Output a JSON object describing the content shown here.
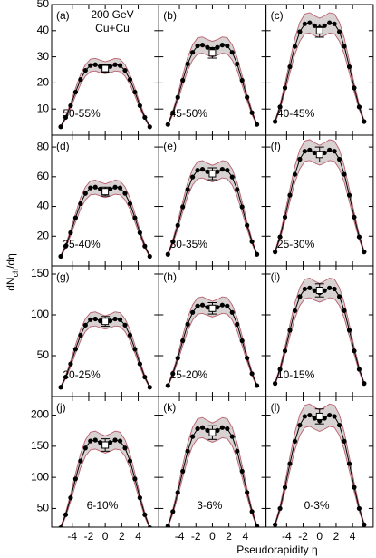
{
  "xlabel": "Pseudorapidity η",
  "ylabel": {
    "main": "dN",
    "sub": "ch",
    "rest": "/dη"
  },
  "annotation": {
    "energy": "200 GeV",
    "system": "Cu+Cu"
  },
  "chart_data": [
    {
      "type": "line",
      "panel": "(a)",
      "label": "50-55%",
      "xlim": [
        -6.5,
        6.5
      ],
      "xticks": [
        -4,
        -2,
        0,
        2,
        4
      ],
      "ylim": [
        0,
        50
      ],
      "yticks": [
        10,
        20,
        30,
        40,
        50
      ],
      "x": [
        -5.4,
        -4.8,
        -4.2,
        -3.6,
        -3.0,
        -2.4,
        -1.8,
        -1.2,
        -0.6,
        0,
        0.6,
        1.2,
        1.8,
        2.4,
        3.0,
        3.6,
        4.2,
        4.8,
        5.4
      ],
      "values": [
        3.2,
        6.8,
        11.3,
        16.5,
        21.3,
        24.8,
        26.7,
        27,
        26.3,
        25.8,
        26.3,
        27,
        26.7,
        24.8,
        21.3,
        16.5,
        11.3,
        6.8,
        3.2
      ],
      "upper": [
        3.5,
        7.4,
        12.3,
        18.0,
        23.2,
        27.0,
        29.1,
        29.4,
        28.7,
        28.1,
        28.7,
        29.4,
        29.1,
        27.0,
        23.2,
        18.0,
        12.3,
        7.4,
        3.5
      ],
      "lower": [
        2.9,
        6.2,
        10.3,
        15.0,
        19.4,
        22.6,
        24.3,
        24.6,
        23.9,
        23.5,
        23.9,
        24.6,
        24.3,
        22.6,
        19.4,
        15.0,
        10.3,
        6.2,
        2.9
      ],
      "center": {
        "value": 25.5,
        "error": 1.5
      }
    },
    {
      "type": "line",
      "panel": "(b)",
      "label": "45-50%",
      "xlim": [
        -6.5,
        6.5
      ],
      "xticks": [
        -4,
        -2,
        0,
        2,
        4
      ],
      "ylim": [
        0,
        50
      ],
      "yticks": [
        10,
        20,
        30,
        40,
        50
      ],
      "x": [
        -5.4,
        -4.8,
        -4.2,
        -3.6,
        -3.0,
        -2.4,
        -1.8,
        -1.2,
        -0.6,
        0,
        0.6,
        1.2,
        1.8,
        2.4,
        3.0,
        3.6,
        4.2,
        4.8,
        5.4
      ],
      "values": [
        4.1,
        8.6,
        14.5,
        21.0,
        27.3,
        31.7,
        34.2,
        34.5,
        33.6,
        32.9,
        33.6,
        34.5,
        34.2,
        31.7,
        27.3,
        21.0,
        14.5,
        8.6,
        4.1
      ],
      "upper": [
        4.5,
        9.4,
        15.8,
        22.9,
        29.8,
        34.6,
        37.3,
        37.6,
        36.6,
        35.9,
        36.6,
        37.6,
        37.3,
        34.6,
        29.8,
        22.9,
        15.8,
        9.4,
        4.5
      ],
      "lower": [
        3.7,
        7.8,
        13.2,
        19.1,
        24.8,
        28.8,
        31.1,
        31.4,
        30.6,
        29.9,
        30.6,
        31.4,
        31.1,
        28.8,
        24.8,
        19.1,
        13.2,
        7.8,
        3.7
      ],
      "center": {
        "value": 31.5,
        "error": 2
      }
    },
    {
      "type": "line",
      "panel": "(c)",
      "label": "40-45%",
      "xlim": [
        -6.5,
        6.5
      ],
      "xticks": [
        -4,
        -2,
        0,
        2,
        4
      ],
      "ylim": [
        0,
        50
      ],
      "yticks": [
        10,
        20,
        30,
        40,
        50
      ],
      "x": [
        -5.4,
        -4.8,
        -4.2,
        -3.6,
        -3.0,
        -2.4,
        -1.8,
        -1.2,
        -0.6,
        0,
        0.6,
        1.2,
        1.8,
        2.4,
        3.0,
        3.6,
        4.2,
        4.8,
        5.4
      ],
      "values": [
        5.2,
        10.8,
        18.1,
        26.2,
        34.0,
        39.6,
        42.6,
        43,
        41.9,
        41.1,
        41.9,
        43,
        42.6,
        39.6,
        34.0,
        26.2,
        18.1,
        10.8,
        5.2
      ],
      "upper": [
        5.7,
        11.8,
        19.7,
        28.6,
        37.1,
        43.2,
        46.4,
        46.9,
        45.7,
        44.8,
        45.7,
        46.9,
        46.4,
        43.2,
        37.1,
        28.6,
        19.7,
        11.8,
        5.7
      ],
      "lower": [
        4.7,
        9.8,
        16.5,
        23.8,
        30.9,
        36.0,
        38.8,
        39.1,
        38.1,
        37.4,
        38.1,
        39.1,
        38.8,
        36.0,
        30.9,
        23.8,
        16.5,
        9.8,
        4.7
      ],
      "center": {
        "value": 40,
        "error": 2.5
      }
    },
    {
      "type": "line",
      "panel": "(d)",
      "label": "35-40%",
      "xlim": [
        -6.5,
        6.5
      ],
      "xticks": [
        -4,
        -2,
        0,
        2,
        4
      ],
      "ylim": [
        0,
        88
      ],
      "yticks": [
        20,
        40,
        60,
        80
      ],
      "x": [
        -5.4,
        -4.8,
        -4.2,
        -3.6,
        -3.0,
        -2.4,
        -1.8,
        -1.2,
        -0.6,
        0,
        0.6,
        1.2,
        1.8,
        2.4,
        3.0,
        3.6,
        4.2,
        4.8,
        5.4
      ],
      "values": [
        6.4,
        13.3,
        22.3,
        32.3,
        41.9,
        48.8,
        52.5,
        53,
        51.7,
        50.6,
        51.7,
        53,
        52.5,
        48.8,
        41.9,
        32.3,
        22.3,
        13.3,
        6.4
      ],
      "upper": [
        7.0,
        14.5,
        24.3,
        35.2,
        45.7,
        53.2,
        57.2,
        57.8,
        56.4,
        55.2,
        56.4,
        57.8,
        57.2,
        53.2,
        45.7,
        35.2,
        24.3,
        14.5,
        7.0
      ],
      "lower": [
        5.8,
        12.1,
        20.3,
        29.4,
        38.1,
        44.4,
        47.8,
        48.2,
        47.0,
        46.0,
        47.0,
        48.2,
        47.8,
        44.4,
        38.1,
        29.4,
        20.3,
        12.1,
        5.8
      ],
      "center": {
        "value": 50,
        "error": 3
      }
    },
    {
      "type": "line",
      "panel": "(e)",
      "label": "30-35%",
      "xlim": [
        -6.5,
        6.5
      ],
      "xticks": [
        -4,
        -2,
        0,
        2,
        4
      ],
      "ylim": [
        0,
        88
      ],
      "yticks": [
        20,
        40,
        60,
        80
      ],
      "x": [
        -5.4,
        -4.8,
        -4.2,
        -3.6,
        -3.0,
        -2.4,
        -1.8,
        -1.2,
        -0.6,
        0,
        0.6,
        1.2,
        1.8,
        2.4,
        3.0,
        3.6,
        4.2,
        4.8,
        5.4
      ],
      "values": [
        7.8,
        16.3,
        27.3,
        39.7,
        51.4,
        59.8,
        64.4,
        65,
        63.4,
        62.1,
        63.4,
        65,
        64.4,
        59.8,
        51.4,
        39.7,
        27.3,
        16.3,
        7.8
      ],
      "upper": [
        8.5,
        17.8,
        29.8,
        43.3,
        56.0,
        65.2,
        70.2,
        70.9,
        69.1,
        67.7,
        69.1,
        70.9,
        70.2,
        65.2,
        56.0,
        43.3,
        29.8,
        17.8,
        8.5
      ],
      "lower": [
        7.1,
        14.8,
        24.8,
        36.1,
        46.8,
        54.4,
        58.6,
        59.2,
        57.7,
        56.5,
        57.7,
        59.2,
        58.6,
        54.4,
        46.8,
        36.1,
        24.8,
        14.8,
        7.1
      ],
      "center": {
        "value": 62,
        "error": 4
      }
    },
    {
      "type": "line",
      "panel": "(f)",
      "label": "25-30%",
      "xlim": [
        -6.5,
        6.5
      ],
      "xticks": [
        -4,
        -2,
        0,
        2,
        4
      ],
      "ylim": [
        0,
        88
      ],
      "yticks": [
        20,
        40,
        60,
        80
      ],
      "x": [
        -5.4,
        -4.8,
        -4.2,
        -3.6,
        -3.0,
        -2.4,
        -1.8,
        -1.2,
        -0.6,
        0,
        0.6,
        1.2,
        1.8,
        2.4,
        3.0,
        3.6,
        4.2,
        4.8,
        5.4
      ],
      "values": [
        9.4,
        19.5,
        32.8,
        47.6,
        61.6,
        71.8,
        77.2,
        78,
        76.1,
        74.5,
        76.1,
        78,
        77.2,
        71.8,
        61.6,
        47.6,
        32.8,
        19.5,
        9.4
      ],
      "upper": [
        10.2,
        21.3,
        35.8,
        51.9,
        67.1,
        78.3,
        84.1,
        85.0,
        82.9,
        81.2,
        82.9,
        85.0,
        84.1,
        78.3,
        67.1,
        51.9,
        35.8,
        21.3,
        10.2
      ],
      "lower": [
        8.6,
        17.7,
        29.8,
        43.3,
        56.1,
        65.3,
        70.3,
        71.0,
        69.3,
        67.8,
        69.3,
        71.0,
        70.3,
        65.3,
        56.1,
        43.3,
        29.8,
        17.7,
        8.6
      ],
      "center": {
        "value": 75,
        "error": 5
      }
    },
    {
      "type": "line",
      "panel": "(g)",
      "label": "20-25%",
      "xlim": [
        -6.5,
        6.5
      ],
      "xticks": [
        -4,
        -2,
        0,
        2,
        4
      ],
      "ylim": [
        0,
        160
      ],
      "yticks": [
        50,
        100,
        150
      ],
      "x": [
        -5.4,
        -4.8,
        -4.2,
        -3.6,
        -3.0,
        -2.4,
        -1.8,
        -1.2,
        -0.6,
        0,
        0.6,
        1.2,
        1.8,
        2.4,
        3.0,
        3.6,
        4.2,
        4.8,
        5.4
      ],
      "values": [
        11.4,
        23.8,
        39.9,
        58.0,
        75.1,
        87.4,
        94.1,
        95,
        92.6,
        90.7,
        92.6,
        95,
        94.1,
        87.4,
        75.1,
        58.0,
        39.9,
        23.8,
        11.4
      ],
      "upper": [
        12.4,
        25.9,
        43.5,
        63.2,
        81.9,
        95.3,
        102.6,
        103.6,
        100.9,
        98.9,
        100.9,
        103.6,
        102.6,
        95.3,
        81.9,
        63.2,
        43.5,
        25.9,
        12.4
      ],
      "lower": [
        10.4,
        21.7,
        36.3,
        52.8,
        68.3,
        79.5,
        85.6,
        86.5,
        84.3,
        82.5,
        84.3,
        86.5,
        85.6,
        79.5,
        68.3,
        52.8,
        36.3,
        21.7,
        10.4
      ],
      "center": {
        "value": 92,
        "error": 6
      }
    },
    {
      "type": "line",
      "panel": "(h)",
      "label": "15-20%",
      "xlim": [
        -6.5,
        6.5
      ],
      "xticks": [
        -4,
        -2,
        0,
        2,
        4
      ],
      "ylim": [
        0,
        160
      ],
      "yticks": [
        50,
        100,
        150
      ],
      "x": [
        -5.4,
        -4.8,
        -4.2,
        -3.6,
        -3.0,
        -2.4,
        -1.8,
        -1.2,
        -0.6,
        0,
        0.6,
        1.2,
        1.8,
        2.4,
        3.0,
        3.6,
        4.2,
        4.8,
        5.4
      ],
      "values": [
        13.4,
        28.0,
        47.0,
        68.3,
        88.5,
        103.0,
        110.9,
        112,
        109.2,
        107.0,
        109.2,
        112,
        110.9,
        103.0,
        88.5,
        68.3,
        47.0,
        28.0,
        13.4
      ],
      "upper": [
        14.6,
        30.5,
        51.2,
        74.4,
        96.5,
        112.3,
        120.9,
        122.1,
        119.0,
        116.6,
        119.0,
        122.1,
        120.9,
        112.3,
        96.5,
        74.4,
        51.2,
        30.5,
        14.6
      ],
      "lower": [
        12.2,
        25.5,
        42.8,
        62.2,
        80.5,
        93.7,
        100.9,
        101.9,
        99.4,
        97.4,
        99.4,
        101.9,
        100.9,
        93.7,
        80.5,
        62.2,
        42.8,
        25.5,
        12.2
      ],
      "center": {
        "value": 108,
        "error": 7
      }
    },
    {
      "type": "line",
      "panel": "(i)",
      "label": "10-15%",
      "xlim": [
        -6.5,
        6.5
      ],
      "xticks": [
        -4,
        -2,
        0,
        2,
        4
      ],
      "ylim": [
        0,
        160
      ],
      "yticks": [
        50,
        100,
        150
      ],
      "x": [
        -5.4,
        -4.8,
        -4.2,
        -3.6,
        -3.0,
        -2.4,
        -1.8,
        -1.2,
        -0.6,
        0,
        0.6,
        1.2,
        1.8,
        2.4,
        3.0,
        3.6,
        4.2,
        4.8,
        5.4
      ],
      "values": [
        16.0,
        33.3,
        55.9,
        81.1,
        105.1,
        122.4,
        131.7,
        133,
        129.7,
        127.0,
        129.7,
        133,
        131.7,
        122.4,
        105.1,
        81.1,
        55.9,
        33.3,
        16.0
      ],
      "upper": [
        17.4,
        36.3,
        60.9,
        88.4,
        114.6,
        133.4,
        143.6,
        145.0,
        141.4,
        138.4,
        141.4,
        145.0,
        143.6,
        133.4,
        114.6,
        88.4,
        60.9,
        36.3,
        17.4
      ],
      "lower": [
        14.6,
        30.3,
        50.9,
        73.8,
        95.6,
        111.4,
        119.8,
        121.0,
        118.0,
        115.6,
        118.0,
        121.0,
        119.8,
        111.4,
        95.6,
        73.8,
        50.9,
        30.3,
        14.6
      ],
      "center": {
        "value": 130,
        "error": 8
      }
    },
    {
      "type": "line",
      "panel": "(j)",
      "label": "6-10%",
      "xlim": [
        -6.5,
        6.5
      ],
      "xticks": [
        -4,
        -2,
        0,
        2,
        4
      ],
      "ylim": [
        20,
        230
      ],
      "yticks": [
        50,
        100,
        150,
        200
      ],
      "x": [
        -5.4,
        -4.8,
        -4.2,
        -3.6,
        -3.0,
        -2.4,
        -1.8,
        -1.2,
        -0.6,
        0,
        0.6,
        1.2,
        1.8,
        2.4,
        3.0,
        3.6,
        4.2,
        4.8,
        5.4
      ],
      "values": [
        19.2,
        40.0,
        67.2,
        97.6,
        126.4,
        147.2,
        158.4,
        160,
        156.0,
        152.8,
        156.0,
        160,
        158.4,
        147.2,
        126.4,
        97.6,
        67.2,
        40.0,
        19.2
      ],
      "upper": [
        20.9,
        43.6,
        73.2,
        106.4,
        137.8,
        160.4,
        172.7,
        174.4,
        170.0,
        166.6,
        170.0,
        174.4,
        172.7,
        160.4,
        137.8,
        106.4,
        73.2,
        43.6,
        20.9
      ],
      "lower": [
        17.5,
        36.4,
        61.2,
        88.8,
        115.0,
        134.0,
        144.1,
        145.6,
        142.0,
        139.0,
        142.0,
        145.6,
        144.1,
        134.0,
        115.0,
        88.8,
        61.2,
        36.4,
        17.5
      ],
      "center": {
        "value": 152,
        "error": 10
      }
    },
    {
      "type": "line",
      "panel": "(k)",
      "label": "3-6%",
      "xlim": [
        -6.5,
        6.5
      ],
      "xticks": [
        -4,
        -2,
        0,
        2,
        4
      ],
      "ylim": [
        20,
        230
      ],
      "yticks": [
        50,
        100,
        150,
        200
      ],
      "x": [
        -5.4,
        -4.8,
        -4.2,
        -3.6,
        -3.0,
        -2.4,
        -1.8,
        -1.2,
        -0.6,
        0,
        0.6,
        1.2,
        1.8,
        2.4,
        3.0,
        3.6,
        4.2,
        4.8,
        5.4
      ],
      "values": [
        21.6,
        45.0,
        75.6,
        109.8,
        142.2,
        165.6,
        178.2,
        180,
        175.5,
        171.9,
        175.5,
        180,
        178.2,
        165.6,
        142.2,
        109.8,
        75.6,
        45.0,
        21.6
      ],
      "upper": [
        23.5,
        49.1,
        82.4,
        119.7,
        155.0,
        180.5,
        194.2,
        196.2,
        191.3,
        187.4,
        191.3,
        196.2,
        194.2,
        180.5,
        155.0,
        119.7,
        82.4,
        49.1,
        23.5
      ],
      "lower": [
        19.7,
        41.0,
        68.8,
        99.9,
        129.4,
        150.7,
        162.2,
        163.8,
        159.7,
        156.4,
        159.7,
        163.8,
        162.2,
        150.7,
        129.4,
        99.9,
        68.8,
        41.0,
        19.7
      ],
      "center": {
        "value": 172,
        "error": 11
      }
    },
    {
      "type": "line",
      "panel": "(l)",
      "label": "0-3%",
      "xlim": [
        -6.5,
        6.5
      ],
      "xticks": [
        -4,
        -2,
        0,
        2,
        4
      ],
      "ylim": [
        20,
        230
      ],
      "yticks": [
        50,
        100,
        150,
        200
      ],
      "x": [
        -5.4,
        -4.8,
        -4.2,
        -3.6,
        -3.0,
        -2.4,
        -1.8,
        -1.2,
        -0.6,
        0,
        0.6,
        1.2,
        1.8,
        2.4,
        3.0,
        3.6,
        4.2,
        4.8,
        5.4
      ],
      "values": [
        24.0,
        50.0,
        84.0,
        122.0,
        158.0,
        184.0,
        198.0,
        200,
        195.0,
        191.0,
        195.0,
        200,
        198.0,
        184.0,
        158.0,
        122.0,
        84.0,
        50.0,
        24.0
      ],
      "upper": [
        26.2,
        54.5,
        91.6,
        133.0,
        172.2,
        200.6,
        215.8,
        218.0,
        212.6,
        208.2,
        212.6,
        218.0,
        215.8,
        200.6,
        172.2,
        133.0,
        91.6,
        54.5,
        26.2
      ],
      "lower": [
        21.8,
        45.5,
        76.4,
        111.0,
        143.8,
        167.4,
        180.2,
        182.0,
        177.5,
        173.8,
        177.5,
        182.0,
        180.2,
        167.4,
        143.8,
        111.0,
        76.4,
        45.5,
        21.8
      ],
      "center": {
        "value": 198,
        "error": 12
      }
    }
  ]
}
